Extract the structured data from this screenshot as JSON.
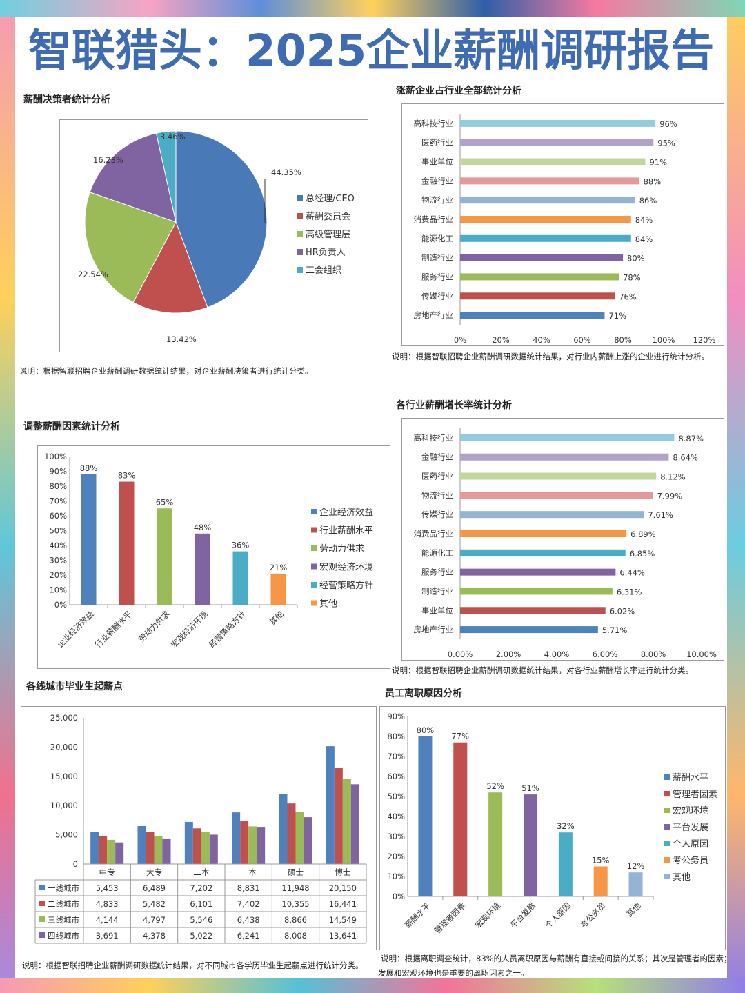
{
  "title": "智联猎头：2025企业薪酬调研报告",
  "sections": {
    "pie_title": "薪酬决策者统计分析",
    "pie_note": "说明：根据智联招聘企业薪酬调研数据统计结果，对企业薪酬决策者进行统计分类。",
    "raise_title": "涨薪企业占行业全部统计分析",
    "raise_note": "说明：根据智联招聘企业薪酬调研数据统计结果，对行业内薪酬上涨的企业进行统计分析。",
    "factor_title": "调整薪酬因素统计分析",
    "growth_title": "各行业薪酬增长率统计分析",
    "growth_note": "说明：根据智联招聘企业薪酬调研数据统计结果，对各行业薪酬增长率进行统计分类。",
    "salary_title": "各线城市毕业生起薪点",
    "salary_note": "说明：根据智联招聘企业薪酬调研数据统计结果，对不同城市各学历毕业生起薪点进行统计分类。",
    "leave_title": "员工离职原因分析",
    "leave_note_1": "说明：根据离职调查统计，83%的人员离职原因与薪酬有直接或间接的关系；其次是管理者的因素；",
    "leave_note_2": "发展和宏观环境也是重要的离职因素之一。"
  },
  "chart_data": [
    {
      "id": "pie",
      "type": "pie",
      "slices": [
        {
          "label": "总经理/CEO",
          "value": 44.35,
          "display": "44.35%",
          "color": "#4a79b8"
        },
        {
          "label": "薪酬委员会",
          "value": 13.42,
          "display": "13.42%",
          "color": "#c0504d"
        },
        {
          "label": "高级管理层",
          "value": 22.54,
          "display": "22.54%",
          "color": "#9bbb59"
        },
        {
          "label": "HR负责人",
          "value": 16.23,
          "display": "16.23%",
          "color": "#8064a2"
        },
        {
          "label": "工会组织",
          "value": 3.46,
          "display": "3.46%",
          "color": "#4bacc6"
        }
      ],
      "legend": "right"
    },
    {
      "id": "raise",
      "type": "bar",
      "orientation": "horizontal",
      "categories": [
        "高科技行业",
        "医药行业",
        "事业单位",
        "金融行业",
        "物流行业",
        "消费品行业",
        "能源化工",
        "制造行业",
        "服务行业",
        "传媒行业",
        "房地产行业"
      ],
      "values": [
        96,
        95,
        91,
        88,
        86,
        84,
        84,
        80,
        78,
        76,
        71
      ],
      "labels": [
        "96%",
        "95%",
        "91%",
        "88%",
        "86%",
        "84%",
        "84%",
        "80%",
        "78%",
        "76%",
        "71%"
      ],
      "colors": [
        "#93cddd",
        "#b3a2c7",
        "#c3d69b",
        "#e6989a",
        "#95b3d7",
        "#f79646",
        "#4bacc6",
        "#8064a2",
        "#9bbb59",
        "#c0504d",
        "#4f81bd"
      ],
      "xlim": [
        0,
        120
      ],
      "xticks": [
        "0%",
        "20%",
        "40%",
        "60%",
        "80%",
        "100%",
        "120%"
      ]
    },
    {
      "id": "factor",
      "type": "bar",
      "categories": [
        "企业经济效益",
        "行业薪酬水平",
        "劳动力供求",
        "宏观经济环境",
        "经营策略方针",
        "其他"
      ],
      "values": [
        88,
        83,
        65,
        48,
        36,
        21
      ],
      "labels": [
        "88%",
        "83%",
        "65%",
        "48%",
        "36%",
        "21%"
      ],
      "colors": [
        "#4f81bd",
        "#c0504d",
        "#9bbb59",
        "#8064a2",
        "#4bacc6",
        "#f79646"
      ],
      "ylim": [
        0,
        100
      ],
      "yticks": [
        "0%",
        "10%",
        "20%",
        "30%",
        "40%",
        "50%",
        "60%",
        "70%",
        "80%",
        "90%",
        "100%"
      ],
      "legend": "right"
    },
    {
      "id": "growth",
      "type": "bar",
      "orientation": "horizontal",
      "categories": [
        "高科技行业",
        "金融行业",
        "医药行业",
        "物流行业",
        "传媒行业",
        "消费品行业",
        "能源化工",
        "服务行业",
        "制造行业",
        "事业单位",
        "房地产行业"
      ],
      "values": [
        8.87,
        8.64,
        8.12,
        7.99,
        7.61,
        6.89,
        6.85,
        6.44,
        6.31,
        6.02,
        5.71
      ],
      "labels": [
        "8.87%",
        "8.64%",
        "8.12%",
        "7.99%",
        "7.61%",
        "6.89%",
        "6.85%",
        "6.44%",
        "6.31%",
        "6.02%",
        "5.71%"
      ],
      "colors": [
        "#93cddd",
        "#b3a2c7",
        "#c3d69b",
        "#e6989a",
        "#95b3d7",
        "#f79646",
        "#4bacc6",
        "#8064a2",
        "#9bbb59",
        "#c0504d",
        "#4f81bd"
      ],
      "xlim": [
        0,
        10
      ],
      "xticks": [
        "0.00%",
        "2.00%",
        "4.00%",
        "6.00%",
        "8.00%",
        "10.00%"
      ]
    },
    {
      "id": "salary",
      "type": "bar",
      "categories": [
        "中专",
        "大专",
        "二本",
        "一本",
        "硕士",
        "博士"
      ],
      "series": [
        {
          "name": "一线城市",
          "values": [
            5453,
            6489,
            7202,
            8831,
            11948,
            20150
          ],
          "labels": [
            "5,453",
            "6,489",
            "7,202",
            "8,831",
            "11,948",
            "20,150"
          ],
          "color": "#4f81bd"
        },
        {
          "name": "二线城市",
          "values": [
            4833,
            5482,
            6101,
            7402,
            10355,
            16441
          ],
          "labels": [
            "4,833",
            "5,482",
            "6,101",
            "7,402",
            "10,355",
            "16,441"
          ],
          "color": "#c0504d"
        },
        {
          "name": "三线城市",
          "values": [
            4144,
            4797,
            5546,
            6438,
            8866,
            14549
          ],
          "labels": [
            "4,144",
            "4,797",
            "5,546",
            "6,438",
            "8,866",
            "14,549"
          ],
          "color": "#9bbb59"
        },
        {
          "name": "四线城市",
          "values": [
            3691,
            4378,
            5022,
            6241,
            8008,
            13641
          ],
          "labels": [
            "3,691",
            "4,378",
            "5,022",
            "6,241",
            "8,008",
            "13,641"
          ],
          "color": "#8064a2"
        }
      ],
      "ylim": [
        0,
        25000
      ],
      "yticks": [
        "0",
        "5,000",
        "10,000",
        "15,000",
        "20,000",
        "25,000"
      ]
    },
    {
      "id": "leave",
      "type": "bar",
      "categories": [
        "薪酬水平",
        "管理者因素",
        "宏观环境",
        "平台发展",
        "个人原因",
        "考公务员",
        "其他"
      ],
      "values": [
        80,
        77,
        52,
        51,
        32,
        15,
        12
      ],
      "labels": [
        "80%",
        "77%",
        "52%",
        "51%",
        "32%",
        "15%",
        "12%"
      ],
      "colors": [
        "#4f81bd",
        "#c0504d",
        "#9bbb59",
        "#8064a2",
        "#4bacc6",
        "#f79646",
        "#95b3d7"
      ],
      "ylim": [
        0,
        90
      ],
      "yticks": [
        "0%",
        "10%",
        "20%",
        "30%",
        "40%",
        "50%",
        "60%",
        "70%",
        "80%",
        "90%"
      ],
      "legend": "right"
    }
  ]
}
